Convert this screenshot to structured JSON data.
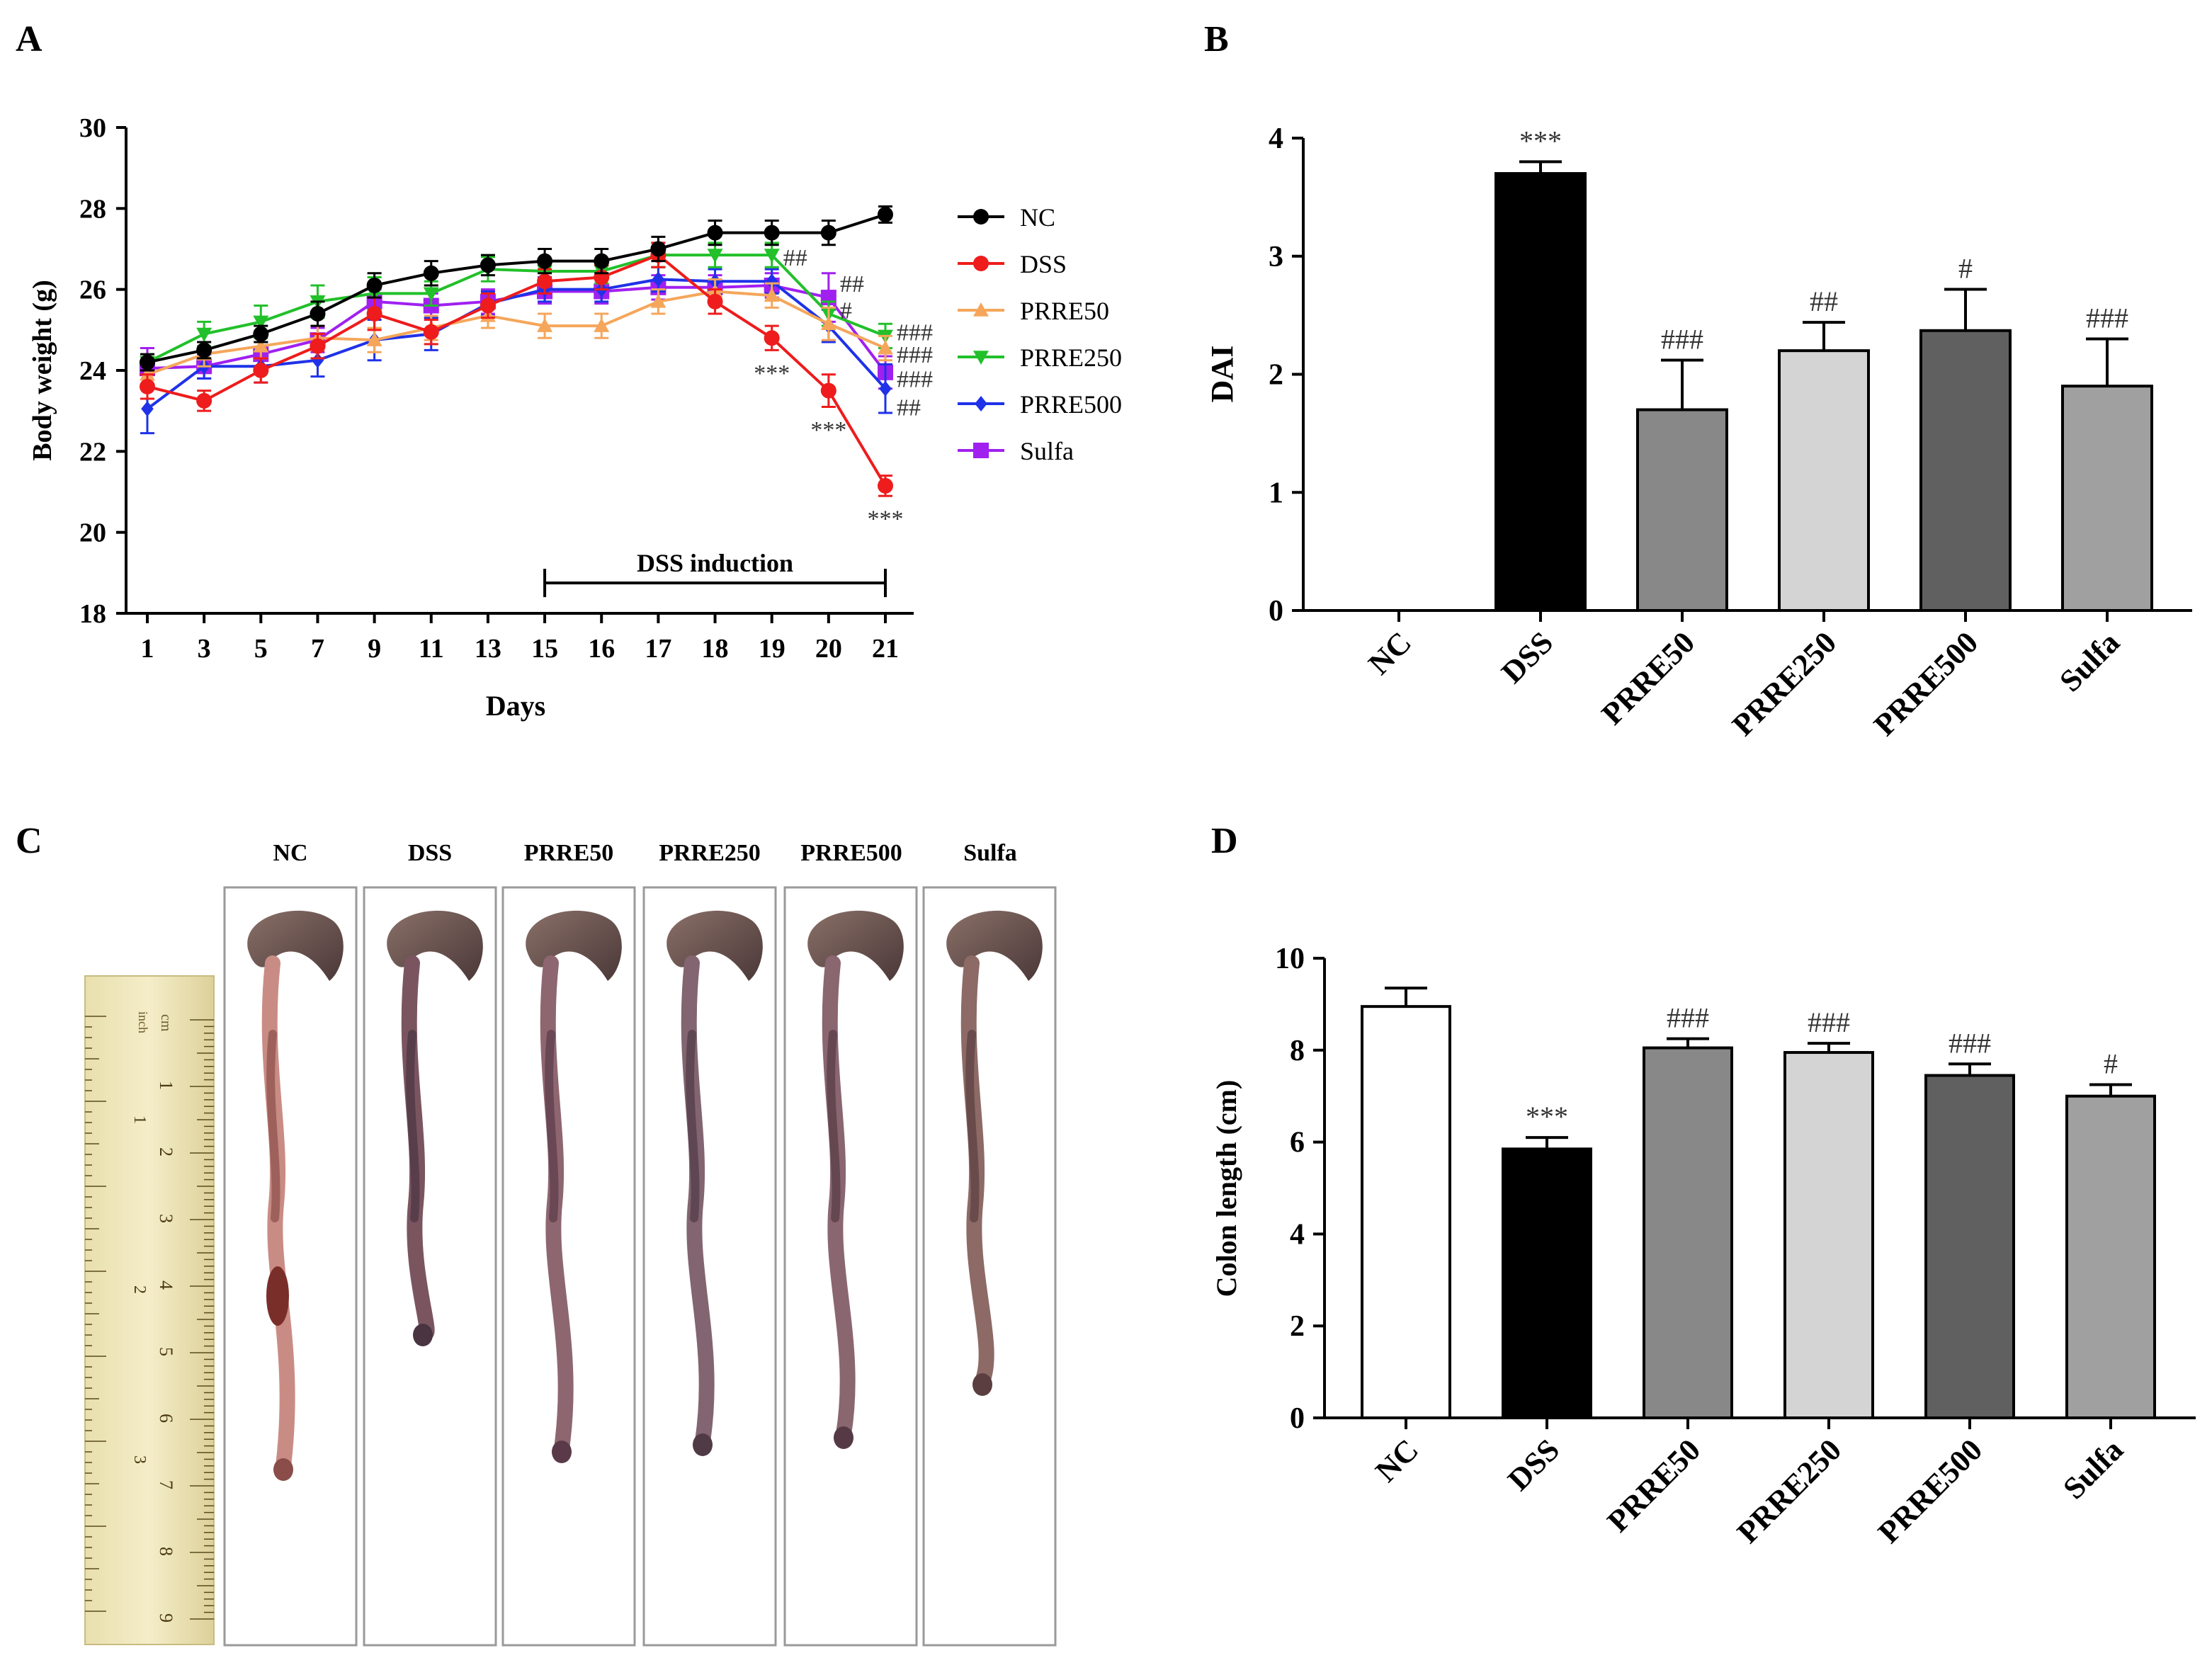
{
  "panels": {
    "A": "A",
    "B": "B",
    "C": "C",
    "D": "D"
  },
  "colors": {
    "NC": "#000000",
    "DSS": "#ee1c1c",
    "PRRE50": "#f5a65b",
    "PRRE250": "#22c02a",
    "PRRE500": "#1f32e8",
    "Sulfa": "#a020f0"
  },
  "chart_data": [
    {
      "type": "line",
      "panel": "A",
      "xlabel": "Days",
      "ylabel": "Body weight (g)",
      "ylim": [
        18,
        30
      ],
      "yticks": [
        "18",
        "20",
        "22",
        "24",
        "26",
        "28",
        "30"
      ],
      "x": [
        "1",
        "3",
        "5",
        "7",
        "9",
        "11",
        "13",
        "15",
        "16",
        "17",
        "18",
        "19",
        "20",
        "21"
      ],
      "series": [
        {
          "name": "NC",
          "marker": "circle",
          "values": [
            24.2,
            24.5,
            24.9,
            25.4,
            26.1,
            26.4,
            26.6,
            26.7,
            26.7,
            27.0,
            27.4,
            27.4,
            27.4,
            27.85
          ],
          "errors": [
            0.2,
            0.2,
            0.2,
            0.3,
            0.3,
            0.3,
            0.25,
            0.3,
            0.3,
            0.3,
            0.3,
            0.3,
            0.3,
            0.2
          ]
        },
        {
          "name": "DSS",
          "marker": "circle",
          "values": [
            23.6,
            23.25,
            24.0,
            24.6,
            25.4,
            24.95,
            25.6,
            26.2,
            26.3,
            26.85,
            25.7,
            24.8,
            23.5,
            21.15
          ],
          "errors": [
            0.3,
            0.25,
            0.3,
            0.3,
            0.4,
            0.3,
            0.3,
            0.3,
            0.3,
            0.3,
            0.3,
            0.3,
            0.4,
            0.25
          ]
        },
        {
          "name": "PRRE50",
          "marker": "triangle-up",
          "values": [
            23.9,
            24.4,
            24.6,
            24.8,
            24.75,
            25.05,
            25.35,
            25.1,
            25.1,
            25.7,
            25.95,
            25.85,
            25.15,
            24.55
          ],
          "errors": [
            0.3,
            0.3,
            0.3,
            0.3,
            0.3,
            0.3,
            0.3,
            0.3,
            0.3,
            0.3,
            0.3,
            0.3,
            0.4,
            0.3
          ]
        },
        {
          "name": "PRRE250",
          "marker": "triangle-down",
          "values": [
            24.2,
            24.9,
            25.2,
            25.7,
            25.9,
            25.9,
            26.5,
            26.45,
            26.45,
            26.85,
            26.85,
            26.85,
            25.4,
            24.85
          ],
          "errors": [
            0.2,
            0.3,
            0.4,
            0.4,
            0.4,
            0.3,
            0.3,
            0.3,
            0.3,
            0.3,
            0.3,
            0.3,
            0.3,
            0.3
          ]
        },
        {
          "name": "PRRE500",
          "marker": "diamond",
          "values": [
            23.05,
            24.1,
            24.1,
            24.25,
            24.75,
            24.9,
            25.65,
            26.0,
            26.0,
            26.25,
            26.2,
            26.2,
            25.1,
            23.55
          ],
          "errors": [
            0.6,
            0.3,
            0.4,
            0.4,
            0.5,
            0.4,
            0.3,
            0.3,
            0.3,
            0.3,
            0.3,
            0.3,
            0.4,
            0.6
          ]
        },
        {
          "name": "Sulfa",
          "marker": "square",
          "values": [
            24.05,
            24.1,
            24.4,
            24.75,
            25.7,
            25.6,
            25.7,
            25.95,
            25.95,
            26.05,
            26.05,
            26.1,
            25.8,
            23.95
          ],
          "errors": [
            0.5,
            0.3,
            0.3,
            0.3,
            0.3,
            0.3,
            0.3,
            0.3,
            0.3,
            0.3,
            0.3,
            0.3,
            0.6,
            0.4
          ]
        }
      ],
      "annotations": [
        {
          "text": "***",
          "x": "19",
          "y": 23.95
        },
        {
          "text": "***",
          "x": "20",
          "y": 22.55
        },
        {
          "text": "***",
          "x": "21",
          "y": 20.35
        },
        {
          "text": "##",
          "x": "19",
          "y": 26.8
        },
        {
          "text": "##",
          "x": "20",
          "y": 26.15
        },
        {
          "text": "#",
          "x": "20",
          "y": 25.5
        },
        {
          "text": "###",
          "x": "21",
          "y": 24.95
        },
        {
          "text": "###",
          "x": "21",
          "y": 24.4
        },
        {
          "text": "###",
          "x": "21",
          "y": 23.8
        },
        {
          "text": "##",
          "x": "21",
          "y": 23.1
        }
      ],
      "bracket": {
        "label": "DSS induction",
        "from": "15",
        "to": "21",
        "y": 18.75
      },
      "legend": "right"
    },
    {
      "type": "bar",
      "panel": "B",
      "ylabel": "DAI",
      "ylim": [
        0,
        4
      ],
      "yticks": [
        "0",
        "1",
        "2",
        "3",
        "4"
      ],
      "categories": [
        "NC",
        "DSS",
        "PRRE50",
        "PRRE250",
        "PRRE500",
        "Sulfa"
      ],
      "values": [
        0,
        3.7,
        1.7,
        2.2,
        2.37,
        1.9
      ],
      "errors": [
        0,
        0.1,
        0.42,
        0.24,
        0.35,
        0.4
      ],
      "fills": [
        "#ffffff",
        "#000000",
        "#888888",
        "#d4d4d4",
        "#606060",
        "#a0a0a0"
      ],
      "labels": [
        "",
        "***",
        "###",
        "##",
        "#",
        "###"
      ]
    },
    {
      "type": "bar",
      "panel": "D",
      "ylabel": "Colon length (cm)",
      "ylim": [
        0,
        10
      ],
      "yticks": [
        "0",
        "2",
        "4",
        "6",
        "8",
        "10"
      ],
      "categories": [
        "NC",
        "DSS",
        "PRRE50",
        "PRRE250",
        "PRRE500",
        "Sulfa"
      ],
      "values": [
        8.95,
        5.85,
        8.05,
        7.95,
        7.45,
        7.0
      ],
      "errors": [
        0.4,
        0.25,
        0.2,
        0.2,
        0.25,
        0.25
      ],
      "fills": [
        "#ffffff",
        "#000000",
        "#888888",
        "#d4d4d4",
        "#606060",
        "#a0a0a0"
      ],
      "labels": [
        "",
        "***",
        "###",
        "###",
        "###",
        "#"
      ]
    }
  ],
  "photo": {
    "labels": [
      "NC",
      "DSS",
      "PRRE50",
      "PRRE250",
      "PRRE500",
      "Sulfa"
    ],
    "ruler": {
      "unit_cm": "cm",
      "unit_inch": "inch",
      "cm_numbers": [
        "1",
        "2",
        "3",
        "4",
        "5",
        "6",
        "7",
        "8",
        "9"
      ],
      "inch_numbers": [
        "1",
        "2",
        "3"
      ]
    }
  }
}
